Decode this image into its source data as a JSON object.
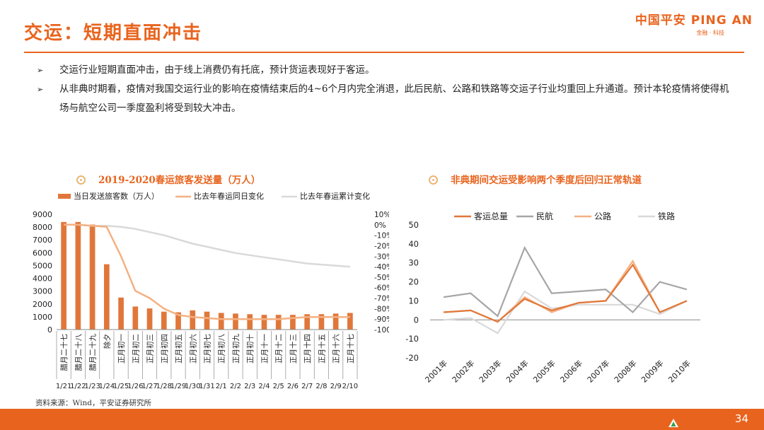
{
  "header": {
    "title": "交运：短期直面冲击",
    "logo_main": "中国平安 PING AN",
    "logo_sub": "金融 · 科技"
  },
  "bullets": [
    "交运行业短期直面冲击，由于线上消费仍有托底，预计货运表现好于客运。",
    "从非典时期看，疫情对我国交运行业的影响在疫情结束后的4~6个月内完全消退，此后民航、公路和铁路等交运子行业均重回上升通道。预计本轮疫情将使得机场与航空公司一季度盈利将受到较大冲击。"
  ],
  "source": "资料来源：Wind，平安证券研究所",
  "page_number": "34",
  "chart_data": [
    {
      "type": "bar",
      "title": "2019-2020春运旅客发送量（万人）",
      "legend": [
        "当日发送旅客数（万人）",
        "比去年春运同日变化",
        "比去年春运累计变化"
      ],
      "legend_placement": "top",
      "colors": {
        "bar": "#e0773a",
        "same_day": "#f4b183",
        "cumulative": "#d9d9d9"
      },
      "lunar_labels": [
        "腊月二十七",
        "腊月二十八",
        "腊月二十九",
        "除夕",
        "正月初一",
        "正月初二",
        "正月初三",
        "正月初四",
        "正月初五",
        "正月初六",
        "正月初七",
        "正月初八",
        "正月初九",
        "正月初十",
        "正月十一",
        "正月十二",
        "正月十三",
        "正月十四",
        "正月十五",
        "正月十六",
        "正月十七"
      ],
      "date_labels": [
        "1/21",
        "1/22",
        "1/23",
        "1/24",
        "1/25",
        "1/26",
        "1/27",
        "1/28",
        "1/29",
        "1/30",
        "1/31",
        "2/1",
        "2/2",
        "2/3",
        "2/4",
        "2/5",
        "2/6",
        "2/7",
        "2/8",
        "2/9",
        "2/10"
      ],
      "passengers": [
        8400,
        8400,
        8200,
        5100,
        2500,
        1800,
        1650,
        1400,
        1350,
        1500,
        1400,
        1300,
        1250,
        1200,
        1150,
        1150,
        1150,
        1200,
        1200,
        1250,
        1300
      ],
      "same_day_change": [
        0,
        0,
        -1,
        -2,
        -30,
        -63,
        -70,
        -80,
        -86,
        -88,
        -89,
        -90,
        -90,
        -90,
        -90,
        -90,
        -89,
        -88,
        -88,
        -88,
        -88
      ],
      "cumulative_change": [
        0,
        0,
        -1,
        -1,
        -2,
        -4,
        -7,
        -10,
        -14,
        -18,
        -21,
        -24,
        -27,
        -29,
        -31,
        -33,
        -35,
        -37,
        -38,
        -39,
        -40
      ],
      "y_left": {
        "ticks": [
          0,
          1000,
          2000,
          3000,
          4000,
          5000,
          6000,
          7000,
          8000,
          9000
        ],
        "range": [
          0,
          9000
        ]
      },
      "y_right": {
        "ticks": [
          "10%",
          "0%",
          "-10%",
          "-20%",
          "-30%",
          "-40%",
          "-50%",
          "-60%",
          "-70%",
          "-80%",
          "-90%",
          "-100%"
        ],
        "range": [
          -100,
          10
        ]
      }
    },
    {
      "type": "line",
      "title": "非典期间交运受影响两个季度后回归正常轨道",
      "x": [
        "2001年",
        "2002年",
        "2003年",
        "2004年",
        "2005年",
        "2006年",
        "2007年",
        "2008年",
        "2009年",
        "2010年"
      ],
      "ylim": [
        -20,
        50
      ],
      "y_ticks": [
        50,
        40,
        30,
        20,
        10,
        0,
        -10,
        -20
      ],
      "legend_placement": "top",
      "series": [
        {
          "name": "客运总量",
          "color": "#e0773a",
          "values": [
            4,
            5,
            -1,
            11,
            5,
            9,
            10,
            29,
            4,
            10
          ]
        },
        {
          "name": "民航",
          "color": "#a6a6a6",
          "values": [
            12,
            14,
            2,
            38,
            14,
            15,
            16,
            4,
            20,
            16
          ]
        },
        {
          "name": "公路",
          "color": "#f4b183",
          "values": [
            4,
            5,
            -1,
            12,
            4,
            9,
            10,
            31,
            4,
            10
          ]
        },
        {
          "name": "铁路",
          "color": "#d9d9d9",
          "values": [
            0,
            1,
            -7,
            15,
            6,
            8,
            8,
            8,
            3,
            10
          ]
        }
      ]
    }
  ]
}
